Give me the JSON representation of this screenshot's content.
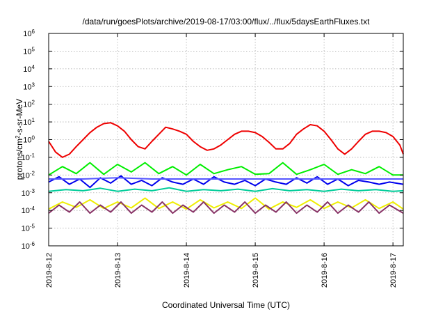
{
  "chart_data": {
    "type": "line",
    "title": "/data/run/goesPlots/archive/2019-08-17/03:00/flux/../flux/5daysEarthFluxes.txt",
    "xlabel": "Coordinated Universal Time (UTC)",
    "ylabel": "protons/cm²-s-sr-MeV",
    "ylabel_base": "protons/cm",
    "ylabel_sup": "2",
    "ylabel_rest": "-s-sr-MeV",
    "yscale": "log",
    "ylim": [
      1e-06,
      1000000.0
    ],
    "xlim": [
      0,
      5.15
    ],
    "grid": true,
    "x_ticks": [
      {
        "value": 0,
        "label": "2019-8-12"
      },
      {
        "value": 1,
        "label": "2019-8-13"
      },
      {
        "value": 2,
        "label": "2019-8-14"
      },
      {
        "value": 3,
        "label": "2019-8-15"
      },
      {
        "value": 4,
        "label": "2019-8-16"
      },
      {
        "value": 5,
        "label": "2019-8-17"
      }
    ],
    "y_ticks": [
      {
        "exp": -6,
        "base": "10",
        "sup": "-6"
      },
      {
        "exp": -5,
        "base": "10",
        "sup": "-5"
      },
      {
        "exp": -4,
        "base": "10",
        "sup": "-4"
      },
      {
        "exp": -3,
        "base": "10",
        "sup": "-3"
      },
      {
        "exp": -2,
        "base": "10",
        "sup": "-2"
      },
      {
        "exp": -1,
        "base": "10",
        "sup": "-1"
      },
      {
        "exp": 0,
        "base": "10",
        "sup": "0"
      },
      {
        "exp": 1,
        "base": "10",
        "sup": "1"
      },
      {
        "exp": 2,
        "base": "10",
        "sup": "2"
      },
      {
        "exp": 3,
        "base": "10",
        "sup": "3"
      },
      {
        "exp": 4,
        "base": "10",
        "sup": "4"
      },
      {
        "exp": 5,
        "base": "10",
        "sup": "5"
      },
      {
        "exp": 6,
        "base": "10",
        "sup": "6"
      }
    ],
    "series": [
      {
        "color": "#00cc99",
        "x": [
          0,
          0.25,
          0.5,
          0.75,
          1,
          1.25,
          1.5,
          1.75,
          2,
          2.25,
          2.5,
          2.75,
          3,
          3.25,
          3.5,
          3.75,
          4,
          4.25,
          4.5,
          4.75,
          5,
          5.15
        ],
        "y": [
          0.0012,
          0.0015,
          0.0013,
          0.0018,
          0.0012,
          0.0016,
          0.0013,
          0.0019,
          0.0012,
          0.0015,
          0.0013,
          0.0016,
          0.0012,
          0.0017,
          0.0013,
          0.0015,
          0.0012,
          0.0016,
          0.0013,
          0.0015,
          0.0012,
          0.0013
        ]
      },
      {
        "color": "#00ee00",
        "x": [
          0,
          0.2,
          0.4,
          0.6,
          0.8,
          1,
          1.2,
          1.4,
          1.6,
          1.8,
          2,
          2.2,
          2.4,
          2.6,
          2.8,
          3,
          3.2,
          3.4,
          3.6,
          3.8,
          4,
          4.2,
          4.4,
          4.6,
          4.8,
          5,
          5.15
        ],
        "y": [
          0.01,
          0.03,
          0.012,
          0.05,
          0.011,
          0.04,
          0.015,
          0.05,
          0.012,
          0.03,
          0.01,
          0.04,
          0.012,
          0.02,
          0.03,
          0.011,
          0.012,
          0.05,
          0.011,
          0.02,
          0.04,
          0.011,
          0.02,
          0.012,
          0.03,
          0.01,
          0.01
        ]
      },
      {
        "color": "#0000ee",
        "x": [
          0,
          0.15,
          0.3,
          0.45,
          0.6,
          0.75,
          0.9,
          1.05,
          1.2,
          1.35,
          1.5,
          1.65,
          1.8,
          1.95,
          2.1,
          2.25,
          2.4,
          2.55,
          2.7,
          2.85,
          3,
          3.15,
          3.3,
          3.45,
          3.6,
          3.75,
          3.9,
          4.05,
          4.2,
          4.35,
          4.5,
          4.65,
          4.8,
          4.95,
          5.15
        ],
        "y": [
          0.004,
          0.008,
          0.003,
          0.006,
          0.002,
          0.007,
          0.0035,
          0.009,
          0.003,
          0.005,
          0.0025,
          0.007,
          0.004,
          0.003,
          0.006,
          0.003,
          0.008,
          0.004,
          0.003,
          0.005,
          0.0025,
          0.006,
          0.004,
          0.003,
          0.007,
          0.0035,
          0.008,
          0.003,
          0.006,
          0.0025,
          0.005,
          0.004,
          0.003,
          0.004,
          0.003
        ]
      },
      {
        "color": "#5555ff",
        "x": [
          0,
          0.5,
          1,
          1.5,
          2,
          2.5,
          3,
          3.5,
          4,
          4.5,
          5,
          5.15
        ],
        "y": [
          0.006,
          0.006,
          0.007,
          0.006,
          0.006,
          0.006,
          0.006,
          0.006,
          0.006,
          0.006,
          0.006,
          0.006
        ]
      },
      {
        "color": "#eeee00",
        "x": [
          0,
          0.2,
          0.4,
          0.6,
          0.8,
          1,
          1.2,
          1.4,
          1.6,
          1.8,
          2,
          2.2,
          2.4,
          2.6,
          2.8,
          3,
          3.2,
          3.4,
          3.6,
          3.8,
          4,
          4.2,
          4.4,
          4.6,
          4.8,
          5,
          5.15
        ],
        "y": [
          0.00012,
          0.0003,
          0.00015,
          0.0004,
          0.00013,
          0.0003,
          0.00014,
          0.0005,
          0.00013,
          0.0003,
          0.00012,
          0.0004,
          0.00014,
          0.0003,
          0.00013,
          0.0005,
          0.00012,
          0.0003,
          0.00015,
          0.0004,
          0.00013,
          0.0003,
          0.00014,
          0.0004,
          0.00013,
          0.0003,
          0.00012
        ]
      },
      {
        "color": "#883366",
        "x": [
          0,
          0.15,
          0.3,
          0.45,
          0.6,
          0.75,
          0.9,
          1.05,
          1.2,
          1.35,
          1.5,
          1.65,
          1.8,
          1.95,
          2.1,
          2.25,
          2.4,
          2.55,
          2.7,
          2.85,
          3,
          3.15,
          3.3,
          3.45,
          3.6,
          3.75,
          3.9,
          4.05,
          4.2,
          4.35,
          4.5,
          4.65,
          4.8,
          4.95,
          5.15
        ],
        "y": [
          7e-05,
          0.0002,
          8e-05,
          0.0003,
          7e-05,
          0.0002,
          8e-05,
          0.0003,
          7e-05,
          0.0002,
          8e-05,
          0.0003,
          7e-05,
          0.0002,
          8e-05,
          0.0003,
          7e-05,
          0.0002,
          8e-05,
          0.0003,
          7e-05,
          0.0002,
          8e-05,
          0.0003,
          7e-05,
          0.0002,
          8e-05,
          0.0003,
          7e-05,
          0.0002,
          8e-05,
          0.0003,
          7e-05,
          0.0002,
          7e-05
        ]
      },
      {
        "color": "#ee0000",
        "x": [
          0,
          0.1,
          0.2,
          0.3,
          0.4,
          0.5,
          0.6,
          0.7,
          0.8,
          0.9,
          1,
          1.1,
          1.2,
          1.3,
          1.4,
          1.5,
          1.6,
          1.7,
          1.8,
          1.9,
          2,
          2.1,
          2.2,
          2.3,
          2.4,
          2.5,
          2.6,
          2.7,
          2.8,
          2.9,
          3,
          3.1,
          3.2,
          3.3,
          3.4,
          3.5,
          3.6,
          3.7,
          3.8,
          3.9,
          4,
          4.1,
          4.2,
          4.3,
          4.4,
          4.5,
          4.6,
          4.7,
          4.8,
          4.9,
          5,
          5.1,
          5.15
        ],
        "y": [
          0.8,
          0.2,
          0.1,
          0.15,
          0.4,
          1.0,
          2.5,
          5,
          8,
          9,
          6,
          3,
          1,
          0.4,
          0.3,
          0.8,
          2,
          5,
          4,
          3,
          2,
          0.8,
          0.4,
          0.25,
          0.3,
          0.5,
          1,
          2,
          3,
          3,
          2.5,
          1.5,
          0.7,
          0.3,
          0.3,
          0.6,
          2,
          4,
          7,
          6,
          3,
          1,
          0.3,
          0.15,
          0.3,
          0.8,
          2,
          3,
          3,
          2.5,
          1.5,
          0.5,
          0.15
        ]
      }
    ]
  }
}
